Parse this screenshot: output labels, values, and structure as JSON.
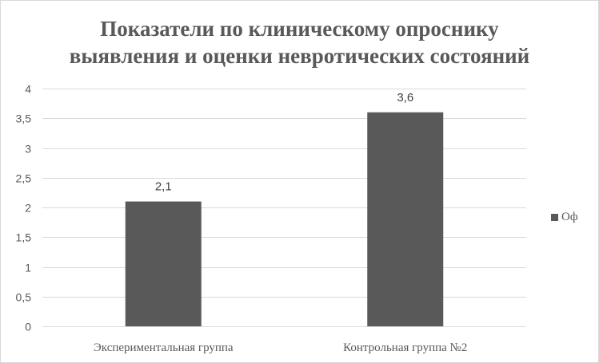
{
  "chart_data": {
    "type": "bar",
    "title_lines": [
      "Показатели по клиническому опроснику",
      "выявления и оценки невротических состояний"
    ],
    "categories": [
      "Экспериментальная группа",
      "Контрольная группа №2"
    ],
    "series": [
      {
        "name": "Оф",
        "values": [
          2.1,
          3.6
        ],
        "color": "#595959"
      }
    ],
    "data_labels": [
      "2,1",
      "3,6"
    ],
    "y_ticks": [
      "0",
      "0,5",
      "1",
      "1,5",
      "2",
      "2,5",
      "3",
      "3,5",
      "4"
    ],
    "ylim": [
      0,
      4
    ],
    "y_step": 0.5,
    "grid": true,
    "grid_color": "#d9d9d9",
    "legend_position": "right",
    "xlabel": "",
    "ylabel": ""
  }
}
